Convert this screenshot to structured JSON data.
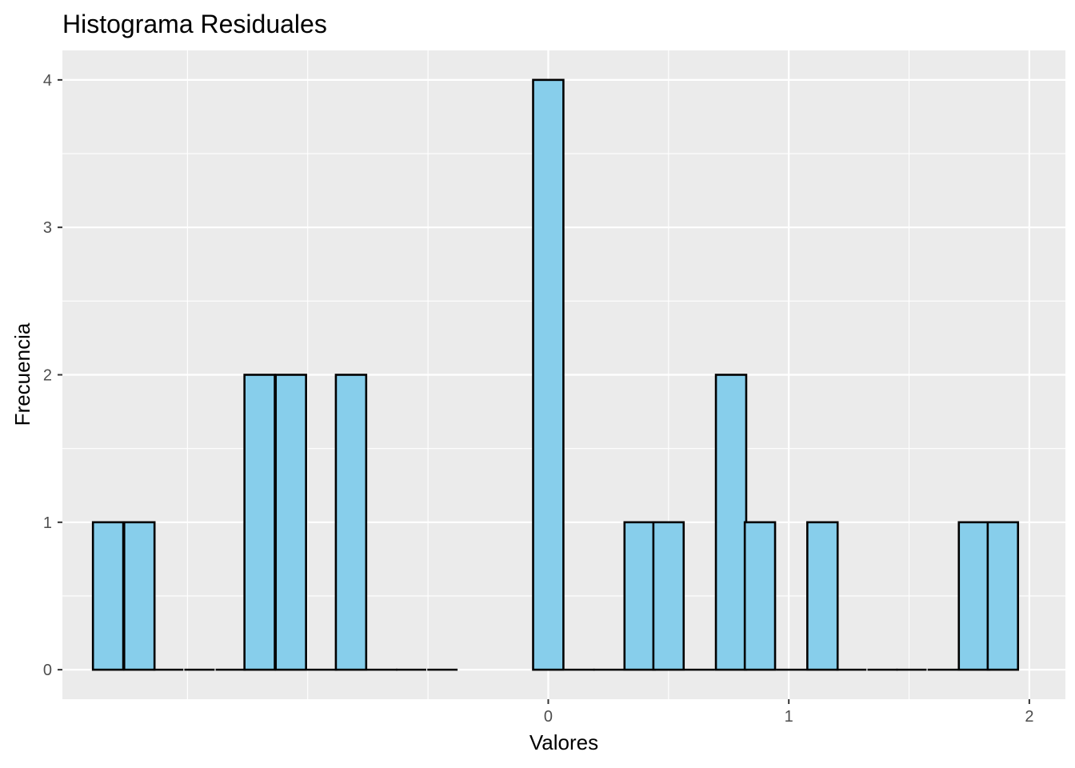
{
  "chart_data": {
    "type": "bar",
    "title": "Histograma Residuales",
    "xlabel": "Valores",
    "ylabel": "Frecuencia",
    "bin_width": 0.126,
    "bins": [
      {
        "x": -1.83,
        "count": 1
      },
      {
        "x": -1.7,
        "count": 1
      },
      {
        "x": -1.58,
        "count": 0
      },
      {
        "x": -1.45,
        "count": 0
      },
      {
        "x": -1.32,
        "count": 0
      },
      {
        "x": -1.2,
        "count": 2
      },
      {
        "x": -1.07,
        "count": 2
      },
      {
        "x": -0.94,
        "count": 0
      },
      {
        "x": -0.82,
        "count": 2
      },
      {
        "x": -0.69,
        "count": 0
      },
      {
        "x": -0.57,
        "count": 0
      },
      {
        "x": -0.44,
        "count": 0
      },
      {
        "x": 0.0,
        "count": 4
      },
      {
        "x": 0.13,
        "count": 0
      },
      {
        "x": 0.25,
        "count": 0
      },
      {
        "x": 0.38,
        "count": 1
      },
      {
        "x": 0.5,
        "count": 1
      },
      {
        "x": 0.63,
        "count": 0
      },
      {
        "x": 0.76,
        "count": 2
      },
      {
        "x": 0.88,
        "count": 1
      },
      {
        "x": 1.01,
        "count": 0
      },
      {
        "x": 1.14,
        "count": 1
      },
      {
        "x": 1.26,
        "count": 0
      },
      {
        "x": 1.39,
        "count": 0
      },
      {
        "x": 1.51,
        "count": 0
      },
      {
        "x": 1.64,
        "count": 0
      },
      {
        "x": 1.77,
        "count": 1
      },
      {
        "x": 1.89,
        "count": 1
      }
    ],
    "xlim": [
      -2.02,
      2.15
    ],
    "ylim": [
      -0.2,
      4.2
    ],
    "x_major_ticks": [
      0,
      1,
      2
    ],
    "x_major_tick_labels": [
      "0",
      "1",
      "2"
    ],
    "x_minor_gridlines": [
      -1.5,
      -1.0,
      -0.5,
      0.5,
      1.5
    ],
    "y_major_ticks": [
      0,
      1,
      2,
      3,
      4
    ],
    "y_major_tick_labels": [
      "0",
      "1",
      "2",
      "3",
      "4"
    ],
    "y_minor_gridlines": [
      0.5,
      1.5,
      2.5,
      3.5
    ],
    "grid": true,
    "colors": {
      "bar_fill": "#87ceeb",
      "bar_stroke": "#000000",
      "panel_background": "#ebebeb",
      "gridline": "#ffffff"
    }
  }
}
